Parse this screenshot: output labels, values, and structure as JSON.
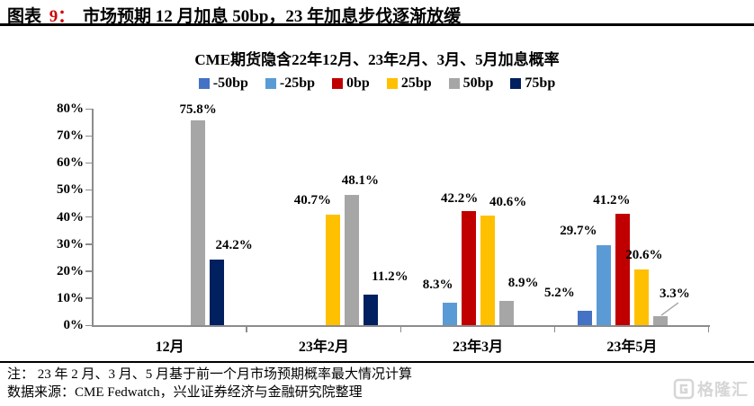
{
  "header": {
    "prefix": "图表",
    "number": "9：",
    "title": "市场预期 12 月加息 50bp，23 年加息步伐逐渐放缓",
    "number_color": "#d00000"
  },
  "chart_data": {
    "type": "bar",
    "title": "CME期货隐含22年12月、23年2月、3月、5月加息概率",
    "categories": [
      "12月",
      "23年2月",
      "23年3月",
      "23年5月"
    ],
    "series": [
      {
        "name": "-50bp",
        "color": "#4472C4",
        "values": [
          null,
          null,
          null,
          5.2
        ],
        "label_dx": [
          0,
          0,
          0,
          -28
        ],
        "label_dy": [
          0,
          0,
          0,
          12
        ]
      },
      {
        "name": "-25bp",
        "color": "#5B9BD5",
        "values": [
          null,
          null,
          8.3,
          29.7
        ],
        "label_dx": [
          0,
          0,
          -13,
          -28
        ],
        "label_dy": [
          0,
          0,
          12,
          8
        ]
      },
      {
        "name": "0bp",
        "color": "#C00000",
        "values": [
          null,
          null,
          42.2,
          41.2
        ],
        "label_dx": [
          0,
          0,
          -10,
          -12
        ],
        "label_dy": [
          0,
          0,
          6,
          7
        ]
      },
      {
        "name": "25bp",
        "color": "#FFC000",
        "values": [
          null,
          40.7,
          40.6,
          20.6
        ],
        "label_dx": [
          0,
          -23,
          23,
          3
        ],
        "label_dy": [
          0,
          8,
          7,
          8
        ]
      },
      {
        "name": "50bp",
        "color": "#A6A6A6",
        "values": [
          75.8,
          48.1,
          8.9,
          3.3
        ],
        "label_dx": [
          0,
          9,
          19,
          16
        ],
        "label_dy": [
          4,
          8,
          12,
          17
        ],
        "leader": [
          false,
          false,
          false,
          true
        ]
      },
      {
        "name": "75bp",
        "color": "#002060",
        "values": [
          24.2,
          11.2,
          null,
          null
        ],
        "label_dx": [
          19,
          21,
          0,
          0
        ],
        "label_dy": [
          8,
          12,
          0,
          0
        ]
      }
    ],
    "ylim": [
      0,
      80
    ],
    "ytick_step": 10,
    "ytick_labels": [
      "0%",
      "10%",
      "20%",
      "30%",
      "40%",
      "50%",
      "60%",
      "70%",
      "80%"
    ],
    "label_format": "{value}%",
    "legend_position": "top",
    "grid": false,
    "axis_color": "#8c8c8c",
    "leader_line_color": "#A6A6A6"
  },
  "notes": {
    "line1": "注：  23 年 2 月、3 月、5 月基于前一个月市场预期概率最大情况计算",
    "line2": "数据来源：CME Fedwatch，兴业证券经济与金融研究院整理"
  },
  "logo": {
    "text": "格隆汇",
    "color": "#d6d6d6"
  }
}
